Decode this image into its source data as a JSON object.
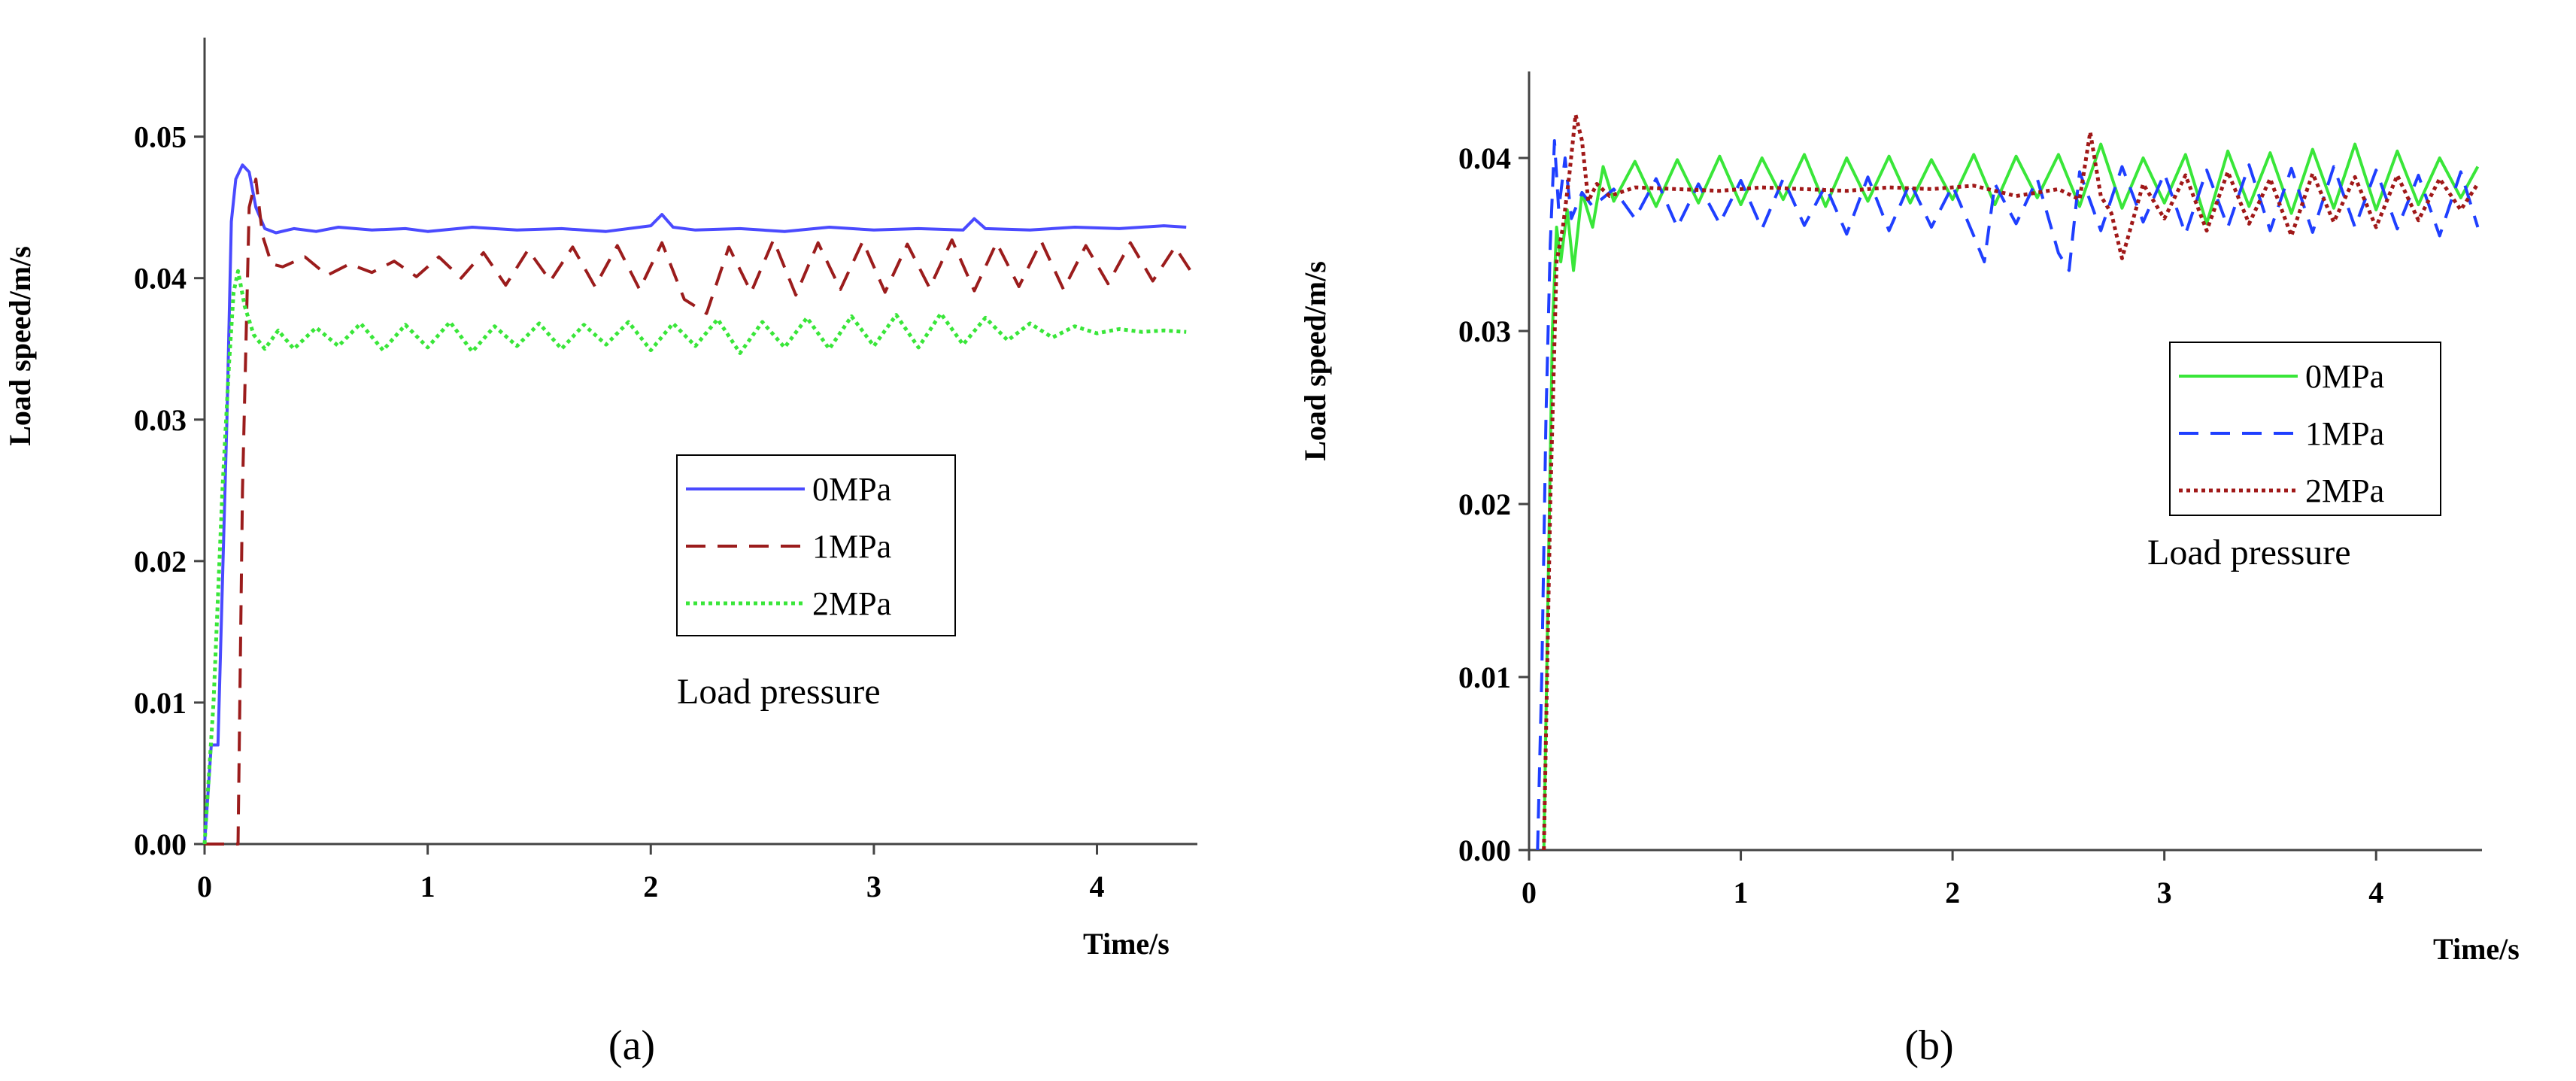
{
  "chart_data": [
    {
      "panel": "a",
      "panel_label": "(a)",
      "type": "line",
      "title": "",
      "ylabel": "Load speed/m/s",
      "xlabel": "Time/s",
      "xlim": [
        0,
        4.45
      ],
      "ylim": [
        0,
        0.057
      ],
      "xticks": [
        0,
        1,
        2,
        3,
        4
      ],
      "xtick_labels": [
        "0",
        "1",
        "2",
        "3",
        "4"
      ],
      "yticks": [
        0,
        0.01,
        0.02,
        0.03,
        0.04,
        0.05
      ],
      "ytick_labels": [
        "0.00",
        "0.01",
        "0.02",
        "0.03",
        "0.04",
        "0.05"
      ],
      "legend_title": "Load pressure",
      "legend_position": "center-right",
      "series": [
        {
          "name": "0MPa",
          "color": "#4a4aff",
          "dash": "solid",
          "x": [
            0,
            0.03,
            0.06,
            0.1,
            0.12,
            0.14,
            0.17,
            0.2,
            0.23,
            0.27,
            0.32,
            0.4,
            0.5,
            0.6,
            0.75,
            0.9,
            1.0,
            1.2,
            1.4,
            1.6,
            1.8,
            2.0,
            2.05,
            2.1,
            2.2,
            2.4,
            2.6,
            2.8,
            3.0,
            3.2,
            3.4,
            3.45,
            3.5,
            3.7,
            3.9,
            4.1,
            4.3,
            4.4
          ],
          "values": [
            0,
            0.007,
            0.007,
            0.03,
            0.044,
            0.047,
            0.048,
            0.0475,
            0.045,
            0.0435,
            0.0432,
            0.0435,
            0.0433,
            0.0436,
            0.0434,
            0.0435,
            0.0433,
            0.0436,
            0.0434,
            0.0435,
            0.0433,
            0.0437,
            0.0445,
            0.0436,
            0.0434,
            0.0435,
            0.0433,
            0.0436,
            0.0434,
            0.0435,
            0.0434,
            0.0442,
            0.0435,
            0.0434,
            0.0436,
            0.0435,
            0.0437,
            0.0436
          ]
        },
        {
          "name": "1MPa",
          "color": "#9b1c1c",
          "dash": "dashed",
          "x": [
            0,
            0.15,
            0.17,
            0.2,
            0.23,
            0.26,
            0.3,
            0.35,
            0.45,
            0.55,
            0.65,
            0.75,
            0.85,
            0.95,
            1.05,
            1.15,
            1.25,
            1.35,
            1.45,
            1.55,
            1.65,
            1.75,
            1.85,
            1.95,
            2.05,
            2.15,
            2.25,
            2.35,
            2.45,
            2.55,
            2.65,
            2.75,
            2.85,
            2.95,
            3.05,
            3.15,
            3.25,
            3.35,
            3.45,
            3.55,
            3.65,
            3.75,
            3.85,
            3.95,
            4.05,
            4.15,
            4.25,
            4.35,
            4.42
          ],
          "values": [
            0,
            0,
            0.025,
            0.045,
            0.047,
            0.043,
            0.041,
            0.0408,
            0.0415,
            0.0402,
            0.041,
            0.0404,
            0.0412,
            0.0401,
            0.0415,
            0.04,
            0.0418,
            0.0395,
            0.042,
            0.0398,
            0.0422,
            0.0394,
            0.0423,
            0.0392,
            0.0425,
            0.0385,
            0.0375,
            0.0422,
            0.039,
            0.0427,
            0.0388,
            0.0425,
            0.0392,
            0.0426,
            0.039,
            0.0424,
            0.0393,
            0.0427,
            0.0391,
            0.0425,
            0.0394,
            0.0426,
            0.0392,
            0.0423,
            0.0396,
            0.0425,
            0.0398,
            0.0422,
            0.0405
          ]
        },
        {
          "name": "2MPa",
          "color": "#39e639",
          "dash": "dotted",
          "x": [
            0,
            0.04,
            0.08,
            0.11,
            0.13,
            0.15,
            0.18,
            0.22,
            0.27,
            0.33,
            0.4,
            0.5,
            0.6,
            0.7,
            0.8,
            0.9,
            1.0,
            1.1,
            1.2,
            1.3,
            1.4,
            1.5,
            1.6,
            1.7,
            1.8,
            1.9,
            2.0,
            2.1,
            2.2,
            2.3,
            2.4,
            2.5,
            2.6,
            2.7,
            2.8,
            2.9,
            3.0,
            3.1,
            3.2,
            3.3,
            3.4,
            3.5,
            3.6,
            3.7,
            3.8,
            3.9,
            4.0,
            4.1,
            4.2,
            4.3,
            4.4
          ],
          "values": [
            0,
            0.01,
            0.025,
            0.034,
            0.039,
            0.0405,
            0.038,
            0.036,
            0.035,
            0.0363,
            0.035,
            0.0365,
            0.0352,
            0.0368,
            0.0349,
            0.0367,
            0.0351,
            0.0369,
            0.0348,
            0.0366,
            0.0352,
            0.0368,
            0.035,
            0.0367,
            0.0353,
            0.0369,
            0.0349,
            0.0368,
            0.0352,
            0.0371,
            0.0347,
            0.0369,
            0.0351,
            0.0372,
            0.035,
            0.0373,
            0.0352,
            0.0374,
            0.0351,
            0.0375,
            0.0353,
            0.0372,
            0.0356,
            0.0368,
            0.0358,
            0.0366,
            0.0361,
            0.0364,
            0.0362,
            0.0363,
            0.0362
          ]
        }
      ]
    },
    {
      "panel": "b",
      "panel_label": "(b)",
      "type": "line",
      "title": "",
      "ylabel": "Load speed/m/s",
      "xlabel": "Time/s",
      "xlim": [
        0,
        4.5
      ],
      "ylim": [
        0,
        0.045
      ],
      "xticks": [
        0,
        1,
        2,
        3,
        4
      ],
      "xtick_labels": [
        "0",
        "1",
        "2",
        "3",
        "4"
      ],
      "yticks": [
        0,
        0.01,
        0.02,
        0.03,
        0.04
      ],
      "ytick_labels": [
        "0.00",
        "0.01",
        "0.02",
        "0.03",
        "0.04"
      ],
      "legend_title": "Load pressure",
      "legend_position": "center-right",
      "series": [
        {
          "name": "0MPa",
          "color": "#39e639",
          "dash": "solid",
          "x": [
            0.07,
            0.09,
            0.11,
            0.13,
            0.15,
            0.18,
            0.21,
            0.25,
            0.3,
            0.35,
            0.4,
            0.5,
            0.6,
            0.7,
            0.8,
            0.9,
            1.0,
            1.1,
            1.2,
            1.3,
            1.4,
            1.5,
            1.6,
            1.7,
            1.8,
            1.9,
            2.0,
            2.1,
            2.2,
            2.3,
            2.4,
            2.5,
            2.6,
            2.7,
            2.8,
            2.9,
            3.0,
            3.1,
            3.2,
            3.3,
            3.4,
            3.5,
            3.6,
            3.7,
            3.8,
            3.9,
            4.0,
            4.1,
            4.2,
            4.3,
            4.4,
            4.48
          ],
          "values": [
            0,
            0.015,
            0.03,
            0.036,
            0.034,
            0.037,
            0.0335,
            0.038,
            0.036,
            0.0395,
            0.0375,
            0.0398,
            0.0372,
            0.0399,
            0.0374,
            0.0401,
            0.0373,
            0.04,
            0.0376,
            0.0402,
            0.0372,
            0.04,
            0.0375,
            0.0401,
            0.0374,
            0.0399,
            0.0376,
            0.0402,
            0.0373,
            0.0401,
            0.0377,
            0.0402,
            0.0372,
            0.0408,
            0.0371,
            0.04,
            0.0374,
            0.0402,
            0.0362,
            0.0404,
            0.0372,
            0.0403,
            0.0368,
            0.0405,
            0.0371,
            0.0408,
            0.037,
            0.0404,
            0.0373,
            0.04,
            0.0377,
            0.0395
          ]
        },
        {
          "name": "1MPa",
          "color": "#1f3fff",
          "dash": "dashed",
          "x": [
            0.04,
            0.06,
            0.08,
            0.1,
            0.12,
            0.14,
            0.17,
            0.2,
            0.25,
            0.3,
            0.4,
            0.5,
            0.6,
            0.7,
            0.8,
            0.9,
            1.0,
            1.1,
            1.2,
            1.3,
            1.4,
            1.5,
            1.6,
            1.7,
            1.8,
            1.9,
            2.0,
            2.1,
            2.15,
            2.2,
            2.3,
            2.4,
            2.5,
            2.55,
            2.6,
            2.7,
            2.8,
            2.9,
            3.0,
            3.1,
            3.2,
            3.3,
            3.4,
            3.5,
            3.6,
            3.7,
            3.8,
            3.9,
            4.0,
            4.1,
            4.2,
            4.3,
            4.4,
            4.48
          ],
          "values": [
            0,
            0.01,
            0.025,
            0.035,
            0.041,
            0.037,
            0.04,
            0.0365,
            0.038,
            0.0372,
            0.0382,
            0.0365,
            0.0388,
            0.036,
            0.0385,
            0.0362,
            0.0387,
            0.0359,
            0.0388,
            0.0361,
            0.0384,
            0.0356,
            0.0389,
            0.0358,
            0.0386,
            0.036,
            0.0384,
            0.0355,
            0.034,
            0.0385,
            0.0362,
            0.0388,
            0.0345,
            0.0335,
            0.0392,
            0.0358,
            0.0395,
            0.0363,
            0.0391,
            0.0356,
            0.0393,
            0.036,
            0.0396,
            0.0358,
            0.0394,
            0.0357,
            0.0395,
            0.036,
            0.0393,
            0.0359,
            0.039,
            0.0355,
            0.0392,
            0.036
          ]
        },
        {
          "name": "2MPa",
          "color": "#a01818",
          "dash": "dotted",
          "x": [
            0.07,
            0.1,
            0.13,
            0.16,
            0.19,
            0.22,
            0.25,
            0.28,
            0.32,
            0.38,
            0.5,
            0.7,
            0.9,
            1.1,
            1.3,
            1.5,
            1.7,
            1.9,
            2.1,
            2.3,
            2.5,
            2.6,
            2.65,
            2.7,
            2.75,
            2.8,
            2.9,
            3.0,
            3.1,
            3.2,
            3.3,
            3.4,
            3.5,
            3.6,
            3.7,
            3.8,
            3.9,
            4.0,
            4.1,
            4.2,
            4.3,
            4.4,
            4.48
          ],
          "values": [
            0,
            0.02,
            0.034,
            0.036,
            0.039,
            0.0425,
            0.041,
            0.0375,
            0.0385,
            0.0378,
            0.0383,
            0.0382,
            0.0381,
            0.0383,
            0.0382,
            0.0381,
            0.0383,
            0.0382,
            0.0384,
            0.0378,
            0.0382,
            0.0376,
            0.0415,
            0.0378,
            0.0368,
            0.0342,
            0.0385,
            0.0365,
            0.039,
            0.0358,
            0.0392,
            0.0362,
            0.0388,
            0.0355,
            0.0391,
            0.0363,
            0.0389,
            0.036,
            0.039,
            0.0364,
            0.0388,
            0.037,
            0.0385
          ]
        }
      ]
    }
  ]
}
